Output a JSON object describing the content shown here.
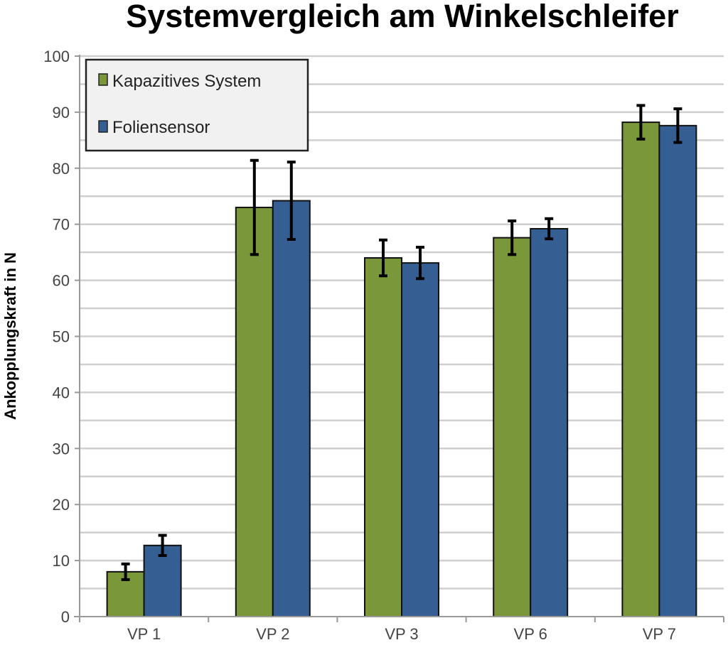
{
  "chart_data": {
    "type": "bar",
    "title": "Systemvergleich am Winkelschleifer",
    "xlabel": "",
    "ylabel": "Ankopplungskraft in N",
    "ylim": [
      0,
      100
    ],
    "yticks": [
      0,
      10,
      20,
      30,
      40,
      50,
      60,
      70,
      80,
      90,
      100
    ],
    "minor_grid_step": 5,
    "grid": true,
    "legend_position": "top-left",
    "categories": [
      "VP 1",
      "VP 2",
      "VP 3",
      "VP 6",
      "VP 7"
    ],
    "series": [
      {
        "name": "Kapazitives System",
        "color": "#7a973a",
        "values": [
          8.0,
          73.0,
          64.0,
          67.6,
          88.2
        ],
        "errors": [
          1.4,
          8.4,
          3.2,
          3.0,
          3.0
        ]
      },
      {
        "name": "Foliensensor",
        "color": "#355f93",
        "values": [
          12.7,
          74.2,
          63.1,
          69.2,
          87.6
        ],
        "errors": [
          1.8,
          6.9,
          2.8,
          1.8,
          3.0
        ]
      }
    ]
  }
}
